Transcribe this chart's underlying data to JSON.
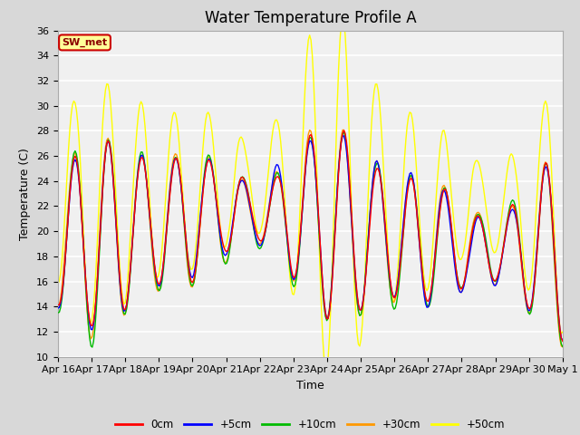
{
  "title": "Water Temperature Profile A",
  "xlabel": "Time",
  "ylabel": "Temperature (C)",
  "ylim": [
    10,
    36
  ],
  "yticks": [
    10,
    12,
    14,
    16,
    18,
    20,
    22,
    24,
    26,
    28,
    30,
    32,
    34,
    36
  ],
  "x_labels": [
    "Apr 16",
    "Apr 17",
    "Apr 18",
    "Apr 19",
    "Apr 20",
    "Apr 21",
    "Apr 22",
    "Apr 23",
    "Apr 24",
    "Apr 25",
    "Apr 26",
    "Apr 27",
    "Apr 28",
    "Apr 29",
    "Apr 30",
    "May 1"
  ],
  "legend_labels": [
    "0cm",
    "+5cm",
    "+10cm",
    "+30cm",
    "+50cm"
  ],
  "legend_colors": [
    "#ff0000",
    "#0000ff",
    "#00bb00",
    "#ff9900",
    "#ffff00"
  ],
  "annotation_text": "SW_met",
  "annotation_bg": "#ffff99",
  "annotation_border": "#cc0000",
  "fig_facecolor": "#d8d8d8",
  "plot_facecolor": "#f0f0f0",
  "title_fontsize": 12,
  "label_fontsize": 9,
  "tick_fontsize": 8
}
